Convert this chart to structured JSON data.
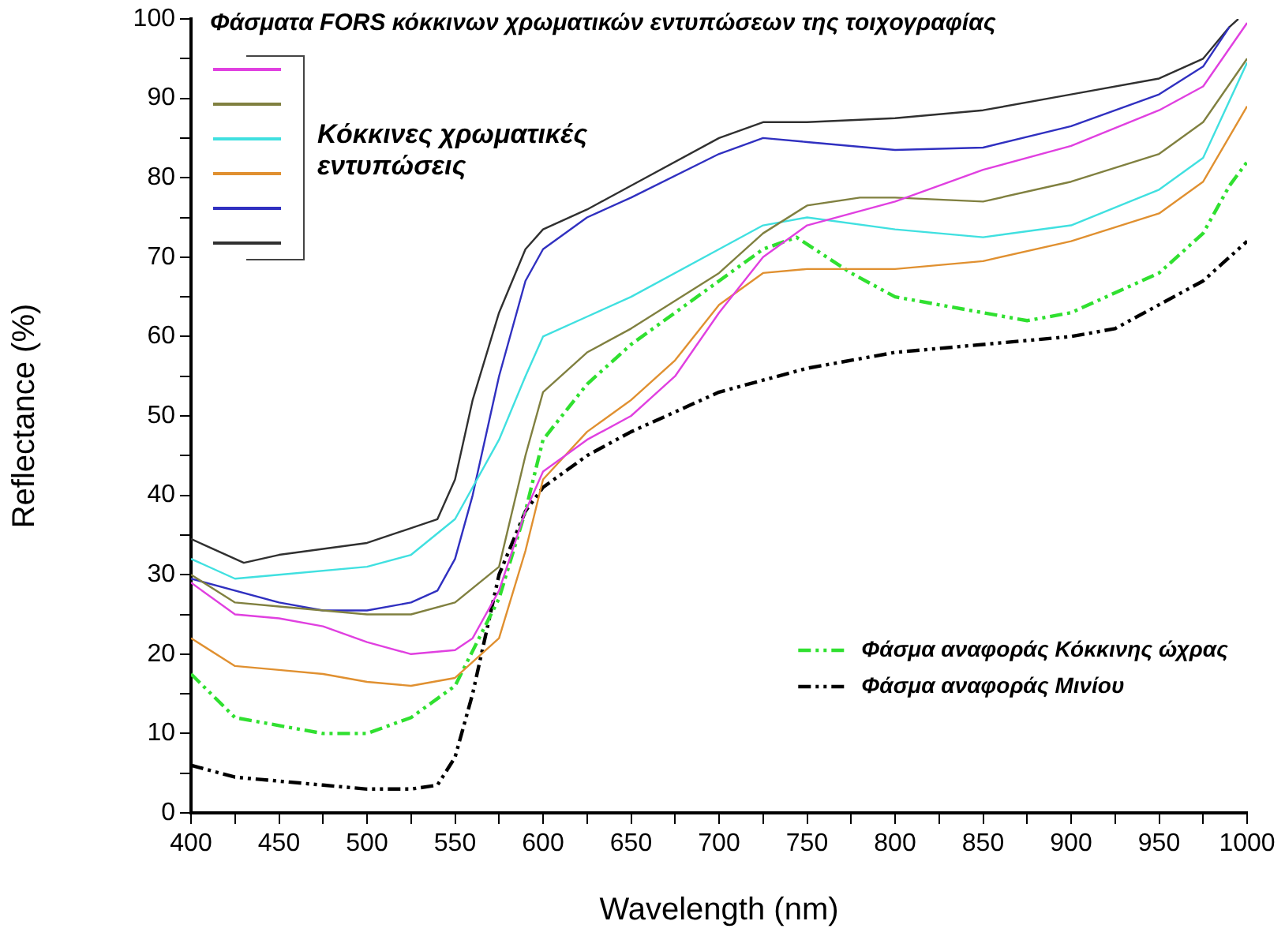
{
  "chart_data": {
    "type": "line",
    "title": "Φάσματα FORS κόκκινων χρωματικών εντυπώσεων της τοιχογραφίας",
    "xlabel": "Wavelength (nm)",
    "ylabel": "Reflectance (%)",
    "annotations": [
      "Κόκκινες χρωματικές εντυπώσεις"
    ],
    "xlim": [
      400,
      1000
    ],
    "ylim": [
      0,
      100
    ],
    "xticks": [
      400,
      {
        "value": 425,
        "label": null
      },
      450,
      {
        "value": 475,
        "label": null
      },
      500,
      {
        "value": 525,
        "label": null
      },
      550,
      {
        "value": 575,
        "label": null
      },
      600,
      {
        "value": 625,
        "label": null
      },
      650,
      {
        "value": 675,
        "label": null
      },
      700,
      {
        "value": 725,
        "label": null
      },
      750,
      {
        "value": 775,
        "label": null
      },
      800,
      {
        "value": 825,
        "label": null
      },
      850,
      {
        "value": 875,
        "label": null
      },
      900,
      {
        "value": 925,
        "label": null
      },
      950,
      {
        "value": 975,
        "label": null
      },
      1000
    ],
    "yticks": [
      0,
      {
        "value": 5,
        "label": null
      },
      10,
      {
        "value": 15,
        "label": null
      },
      20,
      {
        "value": 25,
        "label": null
      },
      30,
      {
        "value": 35,
        "label": null
      },
      40,
      {
        "value": 45,
        "label": null
      },
      50,
      {
        "value": 55,
        "label": null
      },
      60,
      {
        "value": 65,
        "label": null
      },
      70,
      {
        "value": 75,
        "label": null
      },
      80,
      {
        "value": 85,
        "label": null
      },
      90,
      {
        "value": 95,
        "label": null
      },
      100
    ],
    "grid": false,
    "legend": "bottom right",
    "marker": "none",
    "line_style": "solid",
    "series": [
      {
        "color": "#e040e0",
        "x": [
          400,
          425,
          450,
          475,
          500,
          525,
          550,
          560,
          575,
          590,
          600,
          625,
          650,
          675,
          700,
          725,
          750,
          800,
          850,
          900,
          950,
          975,
          1000
        ],
        "values": [
          29,
          25,
          24.5,
          23.5,
          21.5,
          20,
          20.5,
          22,
          28,
          38,
          43,
          47,
          50,
          55,
          63,
          70,
          74,
          77,
          81,
          84,
          88.5,
          91.5,
          99.5
        ]
      },
      {
        "color": "#808040",
        "x": [
          400,
          425,
          450,
          500,
          525,
          550,
          575,
          590,
          600,
          625,
          650,
          700,
          725,
          750,
          780,
          800,
          850,
          900,
          950,
          975,
          1000
        ],
        "values": [
          30,
          26.5,
          26,
          25,
          25,
          26.5,
          31,
          45,
          53,
          58,
          61,
          68,
          73,
          76.5,
          77.5,
          77.5,
          77,
          79.5,
          83,
          87,
          95
        ]
      },
      {
        "color": "#40e0e0",
        "x": [
          400,
          425,
          450,
          500,
          525,
          550,
          575,
          590,
          600,
          625,
          650,
          700,
          725,
          750,
          800,
          850,
          900,
          950,
          975,
          1000
        ],
        "values": [
          32,
          29.5,
          30,
          31,
          32.5,
          37,
          47,
          55,
          60,
          62.5,
          65,
          71,
          74,
          75,
          73.5,
          72.5,
          74,
          78.5,
          82.5,
          94.5
        ]
      },
      {
        "color": "#e09030",
        "x": [
          400,
          425,
          450,
          475,
          500,
          525,
          550,
          575,
          590,
          600,
          625,
          650,
          675,
          700,
          725,
          750,
          775,
          800,
          850,
          900,
          950,
          975,
          1000
        ],
        "values": [
          22,
          18.5,
          18,
          17.5,
          16.5,
          16,
          17,
          22,
          33,
          42,
          48,
          52,
          57,
          64,
          68,
          68.5,
          68.5,
          68.5,
          69.5,
          72,
          75.5,
          79.5,
          89
        ]
      },
      {
        "color": "#3030c0",
        "x": [
          400,
          450,
          475,
          500,
          525,
          540,
          550,
          560,
          575,
          590,
          600,
          625,
          650,
          700,
          725,
          750,
          800,
          850,
          900,
          950,
          975,
          990
        ],
        "values": [
          29.5,
          26.5,
          25.5,
          25.5,
          26.5,
          28,
          32,
          40,
          55,
          67,
          71,
          75,
          77.5,
          83,
          85,
          84.5,
          83.5,
          83.8,
          86.5,
          90.5,
          94,
          99
        ]
      },
      {
        "color": "#303030",
        "x": [
          400,
          430,
          450,
          500,
          540,
          550,
          560,
          575,
          590,
          600,
          625,
          650,
          700,
          725,
          750,
          800,
          850,
          900,
          950,
          975,
          990,
          995
        ],
        "values": [
          34.5,
          31.5,
          32.5,
          34,
          37,
          42,
          52,
          63,
          71,
          73.5,
          76,
          79,
          85,
          87,
          87,
          87.5,
          88.5,
          90.5,
          92.5,
          95,
          99,
          100
        ]
      },
      {
        "name": "Φάσμα αναφοράς Κόκκινης ώχρας",
        "color": "#30e030",
        "line_style": "dashed",
        "x": [
          400,
          425,
          450,
          475,
          500,
          525,
          550,
          575,
          590,
          600,
          625,
          650,
          700,
          725,
          744,
          775,
          800,
          850,
          875,
          900,
          950,
          975,
          990,
          1000
        ],
        "values": [
          17.5,
          12,
          11,
          10,
          10,
          12,
          16,
          27,
          38,
          47,
          54,
          59,
          67,
          71,
          72.5,
          68,
          65,
          63,
          62,
          63,
          68,
          73,
          79,
          82
        ]
      },
      {
        "name": "Φάσμα αναφοράς Μινίου",
        "color": "#000000",
        "line_style": "dashed",
        "x": [
          400,
          425,
          450,
          475,
          500,
          525,
          540,
          550,
          560,
          575,
          590,
          600,
          625,
          650,
          700,
          750,
          800,
          850,
          900,
          925,
          950,
          975,
          1000
        ],
        "values": [
          6,
          4.5,
          4,
          3.5,
          3,
          3,
          3.5,
          7,
          15,
          30,
          38,
          41,
          45,
          48,
          53,
          56,
          58,
          59,
          60,
          61,
          64,
          67,
          72
        ]
      }
    ]
  }
}
